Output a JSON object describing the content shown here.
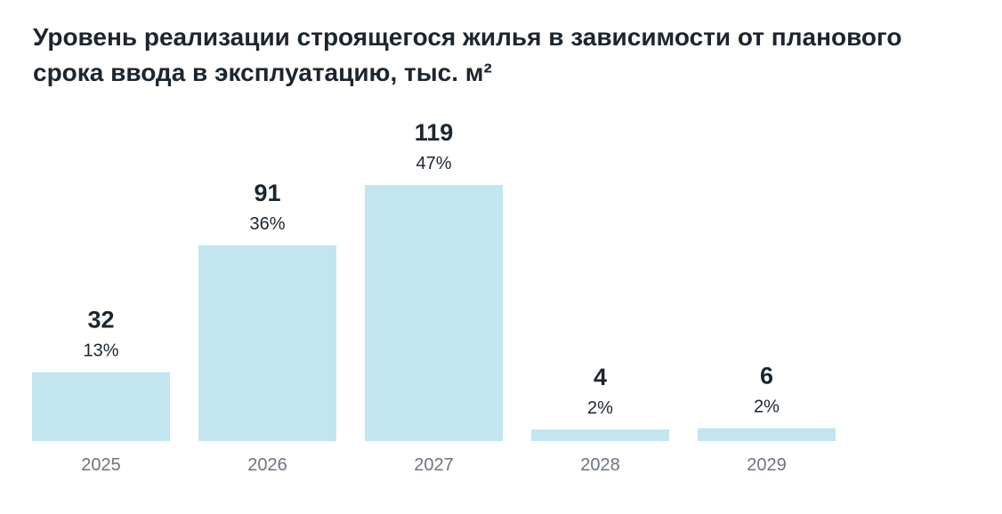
{
  "chart_data": {
    "type": "bar",
    "title": "Уровень реализации строящегося жилья в зависимости от планового срока ввода в эксплуатацию, тыс. м²",
    "xlabel": "",
    "ylabel": "",
    "categories": [
      "2025",
      "2026",
      "2027",
      "2028",
      "2029"
    ],
    "values": [
      32,
      91,
      119,
      4,
      6
    ],
    "shares": [
      "13%",
      "36%",
      "47%",
      "2%",
      "2%"
    ],
    "ylim": [
      0,
      119
    ],
    "grid": false,
    "legend": "none",
    "bar_color": "#c2e5f0"
  }
}
